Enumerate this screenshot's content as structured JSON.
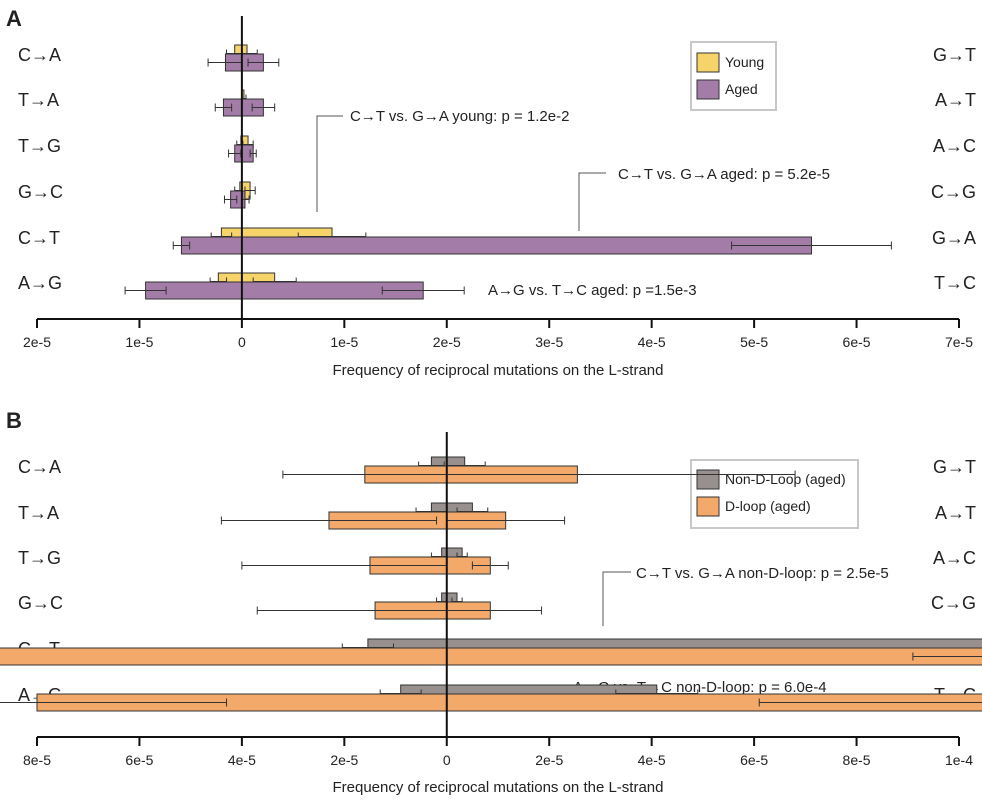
{
  "chart_data": [
    {
      "panel_label": "A",
      "type": "bar",
      "orientation": "horizontal",
      "xlabel": "Frequency of reciprocal mutations on the L-strand",
      "xlim": [
        -2e-05,
        7e-05
      ],
      "xticks": [
        -2e-05,
        -1e-05,
        0,
        1e-05,
        2e-05,
        3e-05,
        4e-05,
        5e-05,
        6e-05,
        7e-05
      ],
      "xtick_labels": [
        "2e-5",
        "1e-5",
        "0",
        "1e-5",
        "2e-5",
        "3e-5",
        "4e-5",
        "5e-5",
        "6e-5",
        "7e-5"
      ],
      "categories_left": [
        "C→A",
        "T→A",
        "T→G",
        "G→C",
        "C→T",
        "A→G"
      ],
      "categories_right": [
        "G→T",
        "A→T",
        "A→C",
        "C→G",
        "G→A",
        "T→C"
      ],
      "legend": {
        "placement": "top-right",
        "entries": [
          "Young",
          "Aged"
        ]
      },
      "series": [
        {
          "name": "Young",
          "color": "#F7D46A",
          "left": [
            -7e-07,
            0,
            -1e-07,
            -2e-07,
            -2e-06,
            -2.3e-06
          ],
          "left_err": [
            8e-07,
            0,
            4e-07,
            5e-07,
            1e-06,
            8e-07
          ],
          "right": [
            5e-07,
            2e-07,
            6e-07,
            8e-07,
            8.8e-06,
            3.2e-06
          ],
          "right_err": [
            1e-06,
            2e-07,
            5e-07,
            5e-07,
            3.3e-06,
            2.1e-06
          ]
        },
        {
          "name": "Aged",
          "color": "#A47CA8",
          "left": [
            -1.6e-06,
            -1.8e-06,
            -7e-07,
            -1.1e-06,
            -5.9e-06,
            -9.4e-06
          ],
          "left_err": [
            1.7e-06,
            8e-07,
            6e-07,
            6e-07,
            8e-07,
            2e-06
          ],
          "right": [
            2.1e-06,
            2.1e-06,
            1.1e-06,
            3e-07,
            5.56e-05,
            1.77e-05
          ],
          "right_err": [
            1.5e-06,
            1.1e-06,
            3e-07,
            4e-07,
            7.8e-06,
            4e-06
          ]
        }
      ],
      "annotations": [
        {
          "text": "C→T vs. G→A young: p = 1.2e-2",
          "pointer_x": 7e-06
        },
        {
          "text": "C→T vs. G→A aged: p = 5.2e-5",
          "pointer_x": 3.28e-05
        },
        {
          "text": "A→G vs. T→C aged: p =1.5e-3"
        }
      ]
    },
    {
      "panel_label": "B",
      "type": "bar",
      "orientation": "horizontal",
      "xlabel": "Frequency of reciprocal mutations on the L-strand",
      "xlim": [
        -8e-05,
        0.0001
      ],
      "xticks": [
        -8e-05,
        -6e-05,
        -4e-05,
        -2e-05,
        0,
        2e-05,
        4e-05,
        6e-05,
        8e-05,
        0.0001
      ],
      "xtick_labels": [
        "8e-5",
        "6e-5",
        "4e-5",
        "2e-5",
        "0",
        "2e-5",
        "4e-5",
        "6e-5",
        "8e-5",
        "1e-4"
      ],
      "categories_left": [
        "C→A",
        "T→A",
        "T→G",
        "G→C",
        "C→T",
        "A→G"
      ],
      "categories_right": [
        "G→T",
        "A→T",
        "A→C",
        "C→G",
        "G→A",
        "T→C"
      ],
      "legend": {
        "placement": "top-right",
        "entries": [
          "Non-D-Loop (aged)",
          "D-loop (aged)"
        ]
      },
      "series": [
        {
          "name": "Non-D-Loop (aged)",
          "color": "#98908F",
          "left": [
            -3e-06,
            -3e-06,
            -1e-06,
            -1e-06,
            -1.54e-05,
            -9e-06
          ],
          "left_err": [
            2.5e-06,
            3e-06,
            2e-06,
            1e-06,
            5e-06,
            4e-06
          ],
          "right": [
            3.5e-06,
            5e-06,
            3e-06,
            2e-06,
            0.0001412,
            4.1e-05
          ],
          "right_err": [
            4e-06,
            3e-06,
            1e-06,
            1e-06,
            1.75e-05,
            8e-06
          ]
        },
        {
          "name": "D-loop (aged)",
          "color": "#F2A96A",
          "left": [
            -1.6e-05,
            -2.3e-05,
            -1.5e-05,
            -1.4e-05,
            -0.000126,
            -8e-05
          ],
          "left_err": [
            1.6e-05,
            2.1e-05,
            2.5e-05,
            2.3e-05,
            1.6e-05,
            3.7e-05
          ],
          "right": [
            2.55e-05,
            1.15e-05,
            8.5e-06,
            8.5e-06,
            0.00013,
            0.00013
          ],
          "right_err": [
            4.25e-05,
            1.15e-05,
            3.5e-06,
            1e-05,
            3.9e-05,
            6.9e-05
          ]
        }
      ],
      "annotations": [
        {
          "text": "C→T vs. G→A non-D-loop: p = 2.5e-5",
          "pointer_x": 7.72e-05
        },
        {
          "text": "A→G vs. T→C non-D-loop: p = 6.0e-4"
        }
      ]
    }
  ]
}
